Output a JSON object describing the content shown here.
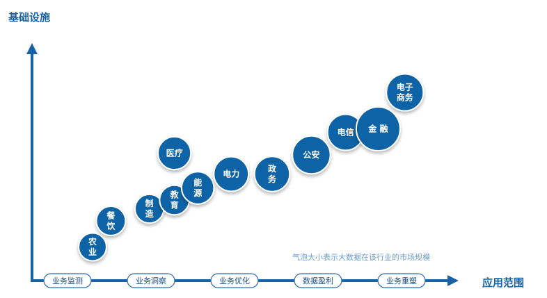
{
  "chart_data": {
    "type": "bubble",
    "ylabel": "基础设施",
    "xlabel": "应用范围",
    "note": "气泡大小表示大数据在该行业的市场规模",
    "categories": [
      "业务监测",
      "业务洞察",
      "业务优化",
      "数据盈利",
      "业务重塑"
    ],
    "bubbles": [
      {
        "label": "农\n业",
        "x": 0.3,
        "y": 0.05,
        "size": 0.15
      },
      {
        "label": "餐\n饮",
        "x": 0.52,
        "y": 0.2,
        "size": 0.18
      },
      {
        "label": "制\n造",
        "x": 0.98,
        "y": 0.27,
        "size": 0.17
      },
      {
        "label": "教\n育",
        "x": 1.28,
        "y": 0.32,
        "size": 0.19
      },
      {
        "label": "能\n源",
        "x": 1.56,
        "y": 0.39,
        "size": 0.25
      },
      {
        "label": "医疗",
        "x": 1.28,
        "y": 0.59,
        "size": 0.26
      },
      {
        "label": "电力",
        "x": 1.96,
        "y": 0.47,
        "size": 0.3
      },
      {
        "label": "政\n务",
        "x": 2.45,
        "y": 0.47,
        "size": 0.31
      },
      {
        "label": "公安",
        "x": 2.92,
        "y": 0.58,
        "size": 0.37
      },
      {
        "label": "电信",
        "x": 3.33,
        "y": 0.71,
        "size": 0.33
      },
      {
        "label": "金  融",
        "x": 3.72,
        "y": 0.73,
        "size": 0.5
      },
      {
        "label": "电子\n商务",
        "x": 4.04,
        "y": 0.94,
        "size": 0.35
      }
    ],
    "colors": {
      "bubble": "#0e63a6",
      "axis": "#1663a8",
      "pill_border": "#2a6db3",
      "pill_text": "#1b4f8a",
      "note": "#6e9ecf"
    }
  }
}
